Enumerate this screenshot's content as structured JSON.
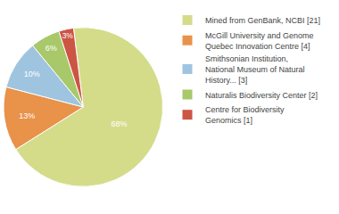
{
  "chart_data": {
    "type": "pie",
    "categories": [
      "Mined from GenBank, NCBI [21]",
      "McGill University and Genome\nQuebec Innovation Centre [4]",
      "Smithsonian Institution,\nNational Museum of Natural\nHistory... [3]",
      "Naturalis Biodiversity Center [2]",
      "Centre for Biodiversity\nGenomics [1]"
    ],
    "values": [
      68,
      13,
      10,
      6,
      3
    ],
    "value_labels": [
      "68%",
      "13%",
      "10%",
      "6%",
      "3%"
    ],
    "colors": [
      "#d4dc8a",
      "#e8924a",
      "#9ec4e0",
      "#a8c86a",
      "#cc5544"
    ],
    "data_labels": true,
    "legend": "right"
  }
}
